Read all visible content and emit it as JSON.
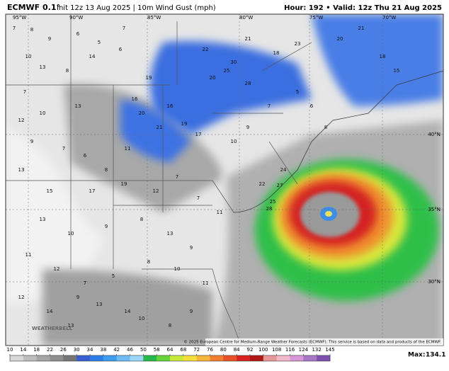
{
  "header": {
    "model": "ECMWF 0.1°",
    "run": "Init 12z 13 Aug 2025 | 10m Wind Gust (mph)",
    "valid": "Hour: 192 • Valid: 12z Thu 21 Aug 2025"
  },
  "map": {
    "lon_labels": [
      "95°W",
      "90°W",
      "85°W",
      "80°W",
      "75°W",
      "70°W"
    ],
    "lat_labels": [
      "40°N",
      "35°N",
      "30°N"
    ],
    "wind_labels": [
      "7",
      "8",
      "9",
      "6",
      "5",
      "7",
      "10",
      "13",
      "8",
      "14",
      "6",
      "7",
      "13",
      "16",
      "20",
      "19",
      "22",
      "21",
      "18",
      "23",
      "20",
      "25",
      "30",
      "28",
      "16",
      "19",
      "21",
      "17",
      "20",
      "21",
      "18",
      "15",
      "12",
      "10",
      "9",
      "7",
      "6",
      "8",
      "11",
      "13",
      "15",
      "17",
      "19",
      "12",
      "7",
      "7",
      "11",
      "13",
      "10",
      "9",
      "8",
      "13",
      "9",
      "11",
      "12",
      "7",
      "5",
      "8",
      "10",
      "11",
      "9",
      "13",
      "14",
      "22",
      "25",
      "27",
      "28",
      "24",
      "10",
      "9",
      "7",
      "5",
      "6",
      "8",
      "12",
      "14",
      "13",
      "10",
      "8",
      "9"
    ],
    "logo": "WEATHERBELL",
    "credit": "© 2025 European Centre for Medium-Range Weather Forecasts (ECMWF). This service is based on data and products of the ECMWF."
  },
  "colorbar": {
    "ticks": [
      10,
      14,
      18,
      22,
      26,
      30,
      34,
      38,
      42,
      46,
      50,
      58,
      64,
      68,
      72,
      76,
      80,
      84,
      92,
      100,
      108,
      116,
      124,
      132,
      145
    ],
    "colors": [
      "#d8d8d8",
      "#bdbdbd",
      "#a6a6a6",
      "#8f8f8f",
      "#767676",
      "#3a5fd0",
      "#2d7ee8",
      "#3c9cf0",
      "#6fbcf5",
      "#9ad6f8",
      "#26b84a",
      "#66d43a",
      "#c8e83a",
      "#f4e03a",
      "#f5b43a",
      "#f08030",
      "#e85028",
      "#d82020",
      "#b01818",
      "#e89898",
      "#f0b8c8",
      "#d898d8",
      "#a878c8",
      "#8050b0"
    ],
    "max_label": "Max:",
    "max_value": 134.1
  }
}
